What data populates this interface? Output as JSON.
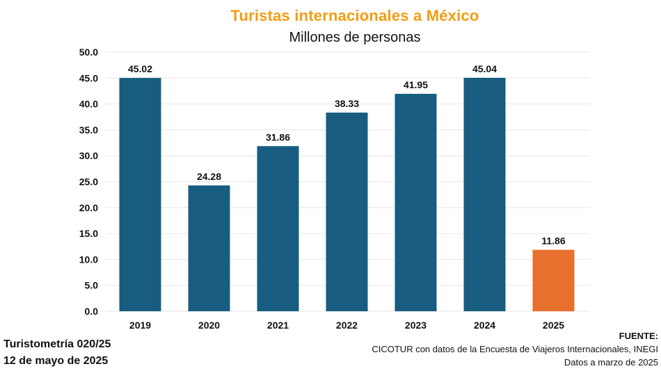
{
  "title": "Turistas internacionales a México",
  "subtitle": "Millones de personas",
  "chart_data": {
    "type": "bar",
    "title": "Turistas internacionales a México",
    "subtitle": "Millones de personas",
    "xlabel": "",
    "ylabel": "",
    "categories": [
      "2019",
      "2020",
      "2021",
      "2022",
      "2023",
      "2024",
      "2025"
    ],
    "values": [
      45.02,
      24.28,
      31.86,
      38.33,
      41.95,
      45.04,
      11.86
    ],
    "value_labels": [
      "45.02",
      "24.28",
      "31.86",
      "38.33",
      "41.95",
      "45.04",
      "11.86"
    ],
    "ylim": [
      0,
      50
    ],
    "yticks": [
      0,
      5,
      10,
      15,
      20,
      25,
      30,
      35,
      40,
      45,
      50
    ],
    "ytick_labels": [
      "0.0",
      "5.0",
      "10.0",
      "15.0",
      "20.0",
      "25.0",
      "30.0",
      "35.0",
      "40.0",
      "45.0",
      "50.0"
    ],
    "grid": true,
    "legend": "none",
    "colors": {
      "bar": "#185d80",
      "highlight": "#e8702e",
      "title": "#f39c12",
      "grid": "#e6e6e6"
    },
    "highlight_index": 6
  },
  "footer": {
    "left_line1": "Turistometría 020/25",
    "left_line2": "12 de mayo de 2025",
    "source_title": "FUENTE:",
    "source_line1": "CICOTUR con datos de la Encuesta de Viajeros Internacionales, INEGI",
    "source_line2": "Datos a marzo de 2025"
  }
}
